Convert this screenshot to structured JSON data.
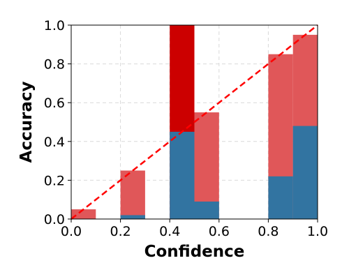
{
  "chart_data": {
    "type": "bar",
    "xlabel": "Confidence",
    "ylabel": "Accuracy",
    "xlim": [
      0.0,
      1.0
    ],
    "ylim": [
      0.0,
      1.0
    ],
    "xticks": [
      "0.0",
      "0.2",
      "0.4",
      "0.6",
      "0.8",
      "1.0"
    ],
    "yticks": [
      "0.0",
      "0.2",
      "0.4",
      "0.6",
      "0.8",
      "1.0"
    ],
    "grid": true,
    "bin_width": 0.1,
    "bins": [
      0.0,
      0.1,
      0.2,
      0.3,
      0.4,
      0.5,
      0.6,
      0.7,
      0.8,
      0.9
    ],
    "series": [
      {
        "values": [
          0.0,
          0.0,
          0.02,
          0.0,
          0.45,
          0.09,
          0.0,
          0.0,
          0.22,
          0.48
        ],
        "color": "#3274a1"
      },
      {
        "values": [
          0.05,
          0.0,
          0.25,
          0.0,
          1.0,
          0.55,
          0.0,
          0.0,
          0.85,
          0.95
        ],
        "color": "#e05759"
      }
    ],
    "highlight": {
      "bin": 0.4,
      "color": "#cc0000"
    },
    "reference_line": {
      "from": [
        0.0,
        0.0
      ],
      "to": [
        1.0,
        1.0
      ],
      "color": "#ff0000",
      "style": "dashed"
    }
  }
}
